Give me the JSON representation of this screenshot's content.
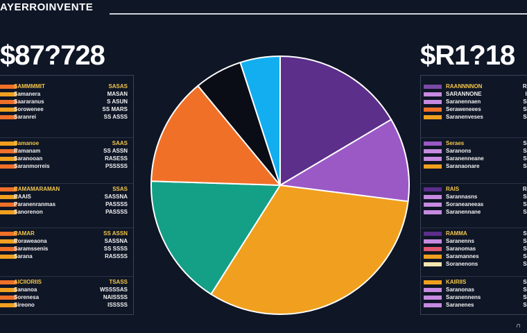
{
  "header": {
    "title": "AYERROINVENTE"
  },
  "left_total": "$87?728",
  "right_total": "$R1?18",
  "colors": {
    "purple_dark": "#5b2f8a",
    "purple_light": "#9b59c6",
    "orange_gold": "#f0a01e",
    "teal": "#13a087",
    "orange": "#f07028",
    "black": "#0a0d16",
    "blue": "#13aef0",
    "gold_text": "#f5c84a",
    "white_text": "#f2f2f2"
  },
  "chart_data": {
    "type": "pie",
    "title": "",
    "slices": [
      {
        "value": 16.5,
        "color": "#5b2f8a"
      },
      {
        "value": 10.5,
        "color": "#9b59c6"
      },
      {
        "value": 32.0,
        "color": "#f0a01e"
      },
      {
        "value": 16.5,
        "color": "#13a087"
      },
      {
        "value": 13.5,
        "color": "#f07028"
      },
      {
        "value": 6.0,
        "color": "#0a0d16"
      },
      {
        "value": 5.0,
        "color": "#13aef0"
      }
    ]
  },
  "left_legend": {
    "groups": [
      {
        "rows": [
          {
            "label": "SAMMMMIT",
            "value": "SASAS",
            "swatch": "#f07028",
            "lcolor": "#f5c84a",
            "vcolor": "#f5c84a"
          },
          {
            "label": "Samanera",
            "value": "MASAN",
            "swatch": "#f0a01e",
            "lcolor": "#f2f2f2",
            "vcolor": "#f2f2f2"
          },
          {
            "label": "Saararanus",
            "value": "S ASUN",
            "swatch": "#f07028",
            "lcolor": "#f2f2f2",
            "vcolor": "#f2f2f2"
          },
          {
            "label": "Sorowenee",
            "value": "SS MARS",
            "swatch": "#f0a01e",
            "lcolor": "#f2f2f2",
            "vcolor": "#f2f2f2"
          },
          {
            "label": "Saranrei",
            "value": "SS ASSS",
            "swatch": "#f07028",
            "lcolor": "#f2f2f2",
            "vcolor": "#f2f2f2"
          }
        ]
      },
      {
        "rows": [
          {
            "label": "Bamanoe",
            "value": "SAAS",
            "swatch": "#f0a01e",
            "lcolor": "#f5c84a",
            "vcolor": "#f5c84a"
          },
          {
            "label": "Ramanam",
            "value": "SS ASSN",
            "swatch": "#f07028",
            "lcolor": "#f2f2f2",
            "vcolor": "#f2f2f2"
          },
          {
            "label": "Saranooan",
            "value": "RASESS",
            "swatch": "#f0a01e",
            "lcolor": "#f2f2f2",
            "vcolor": "#f2f2f2"
          },
          {
            "label": "Saranmorreis",
            "value": "PSSSSS",
            "swatch": "#f07028",
            "lcolor": "#f2f2f2",
            "vcolor": "#f2f2f2"
          }
        ]
      },
      {
        "rows": [
          {
            "label": "RAMAMARAMAN",
            "value": "SSAS",
            "swatch": "#f07028",
            "lcolor": "#f5c84a",
            "vcolor": "#f5c84a"
          },
          {
            "label": "RAAIS",
            "value": "SASSNA",
            "swatch": "#f0a01e",
            "lcolor": "#f2f2f2",
            "vcolor": "#f2f2f2"
          },
          {
            "label": "Paranenranmas",
            "value": "PASSSS",
            "swatch": "#f07028",
            "lcolor": "#f2f2f2",
            "vcolor": "#f2f2f2"
          },
          {
            "label": "Sanorenon",
            "value": "PASSSS",
            "swatch": "#f0a01e",
            "lcolor": "#f2f2f2",
            "vcolor": "#f2f2f2"
          }
        ]
      },
      {
        "rows": [
          {
            "label": "RAMAR",
            "value": "SS ASSN",
            "swatch": "#f07028",
            "lcolor": "#f5c84a",
            "vcolor": "#f5c84a"
          },
          {
            "label": "Roraweaona",
            "value": "SASSNA",
            "swatch": "#f0a01e",
            "lcolor": "#f2f2f2",
            "vcolor": "#f2f2f2"
          },
          {
            "label": "Saramssenis",
            "value": "SS SSSS",
            "swatch": "#f07028",
            "lcolor": "#f2f2f2",
            "vcolor": "#f2f2f2"
          },
          {
            "label": "Sarana",
            "value": "RASSSS",
            "swatch": "#f0a01e",
            "lcolor": "#f2f2f2",
            "vcolor": "#f2f2f2"
          }
        ]
      },
      {
        "rows": [
          {
            "label": "AICIIORIIS",
            "value": "TSASS",
            "swatch": "#f07028",
            "lcolor": "#f5c84a",
            "vcolor": "#f5c84a"
          },
          {
            "label": "Sananoa",
            "value": "WSSSSAS",
            "swatch": "#f0a01e",
            "lcolor": "#f2f2f2",
            "vcolor": "#f2f2f2"
          },
          {
            "label": "Sorenesa",
            "value": "NAISSSS",
            "swatch": "#f07028",
            "lcolor": "#f2f2f2",
            "vcolor": "#f2f2f2"
          },
          {
            "label": "Sireono",
            "value": "ISSSSS",
            "swatch": "#f0a01e",
            "lcolor": "#f2f2f2",
            "vcolor": "#f2f2f2"
          }
        ]
      }
    ]
  },
  "right_legend": {
    "groups": [
      {
        "rows": [
          {
            "label": "RAANNNNON",
            "value": "RS",
            "swatch": "#7b4aa8",
            "lcolor": "#f5c84a",
            "vcolor": "#f2f2f2"
          },
          {
            "label": "SARANNONE",
            "value": "IS",
            "swatch": "#c68ae0",
            "lcolor": "#f2f2f2",
            "vcolor": "#f2f2f2"
          },
          {
            "label": "Saranennaen",
            "value": "SE",
            "swatch": "#c68ae0",
            "lcolor": "#f2f2f2",
            "vcolor": "#f2f2f2"
          },
          {
            "label": "Seraweneees",
            "value": "SS",
            "swatch": "#f07028",
            "lcolor": "#f2f2f2",
            "vcolor": "#f2f2f2"
          },
          {
            "label": "Saranenveses",
            "value": "SS",
            "swatch": "#f0a01e",
            "lcolor": "#f2f2f2",
            "vcolor": "#f2f2f2"
          }
        ]
      },
      {
        "rows": [
          {
            "label": "Seraes",
            "value": "SS",
            "swatch": "#9b59c6",
            "lcolor": "#f5c84a",
            "vcolor": "#f2f2f2"
          },
          {
            "label": "Saranons",
            "value": "SS",
            "swatch": "#c68ae0",
            "lcolor": "#f2f2f2",
            "vcolor": "#f2f2f2"
          },
          {
            "label": "Saranenneane",
            "value": "SS",
            "swatch": "#c68ae0",
            "lcolor": "#f2f2f2",
            "vcolor": "#f2f2f2"
          },
          {
            "label": "Saranaonare",
            "value": "SS",
            "swatch": "#f0a01e",
            "lcolor": "#f2f2f2",
            "vcolor": "#f2f2f2"
          }
        ]
      },
      {
        "rows": [
          {
            "label": "RAIS",
            "value": "RS",
            "swatch": "#5b2f8a",
            "lcolor": "#f5c84a",
            "vcolor": "#f2f2f2"
          },
          {
            "label": "Sarannasns",
            "value": "SS",
            "swatch": "#c68ae0",
            "lcolor": "#f2f2f2",
            "vcolor": "#f2f2f2"
          },
          {
            "label": "Soraneaneeas",
            "value": "SS",
            "swatch": "#c68ae0",
            "lcolor": "#f2f2f2",
            "vcolor": "#f2f2f2"
          },
          {
            "label": "Saranennane",
            "value": "SS",
            "swatch": "#c68ae0",
            "lcolor": "#f2f2f2",
            "vcolor": "#f2f2f2"
          }
        ]
      },
      {
        "rows": [
          {
            "label": "RAMMA",
            "value": "SS",
            "swatch": "#5b2f8a",
            "lcolor": "#f5c84a",
            "vcolor": "#f2f2f2"
          },
          {
            "label": "Saranenns",
            "value": "SS",
            "swatch": "#c68ae0",
            "lcolor": "#f2f2f2",
            "vcolor": "#f2f2f2"
          },
          {
            "label": "Saranomas",
            "value": "SS",
            "swatch": "#e05870",
            "lcolor": "#f2f2f2",
            "vcolor": "#f2f2f2"
          },
          {
            "label": "Saramannes",
            "value": "SS",
            "swatch": "#f0a01e",
            "lcolor": "#f2f2f2",
            "vcolor": "#f2f2f2"
          },
          {
            "label": "Soranenons",
            "value": "SS",
            "swatch": "#f5e6b0",
            "lcolor": "#f2f2f2",
            "vcolor": "#f2f2f2"
          }
        ]
      },
      {
        "rows": [
          {
            "label": "KAIRIIS",
            "value": "SS",
            "swatch": "#f0a01e",
            "lcolor": "#f5c84a",
            "vcolor": "#f2f2f2"
          },
          {
            "label": "Saranonas",
            "value": "SS",
            "swatch": "#c68ae0",
            "lcolor": "#f2f2f2",
            "vcolor": "#f2f2f2"
          },
          {
            "label": "Saranennens",
            "value": "SS",
            "swatch": "#c68ae0",
            "lcolor": "#f2f2f2",
            "vcolor": "#f2f2f2"
          },
          {
            "label": "Saranenes",
            "value": "SS",
            "swatch": "#c68ae0",
            "lcolor": "#f2f2f2",
            "vcolor": "#f2f2f2"
          }
        ]
      }
    ]
  },
  "corner_icon": "lock-icon"
}
